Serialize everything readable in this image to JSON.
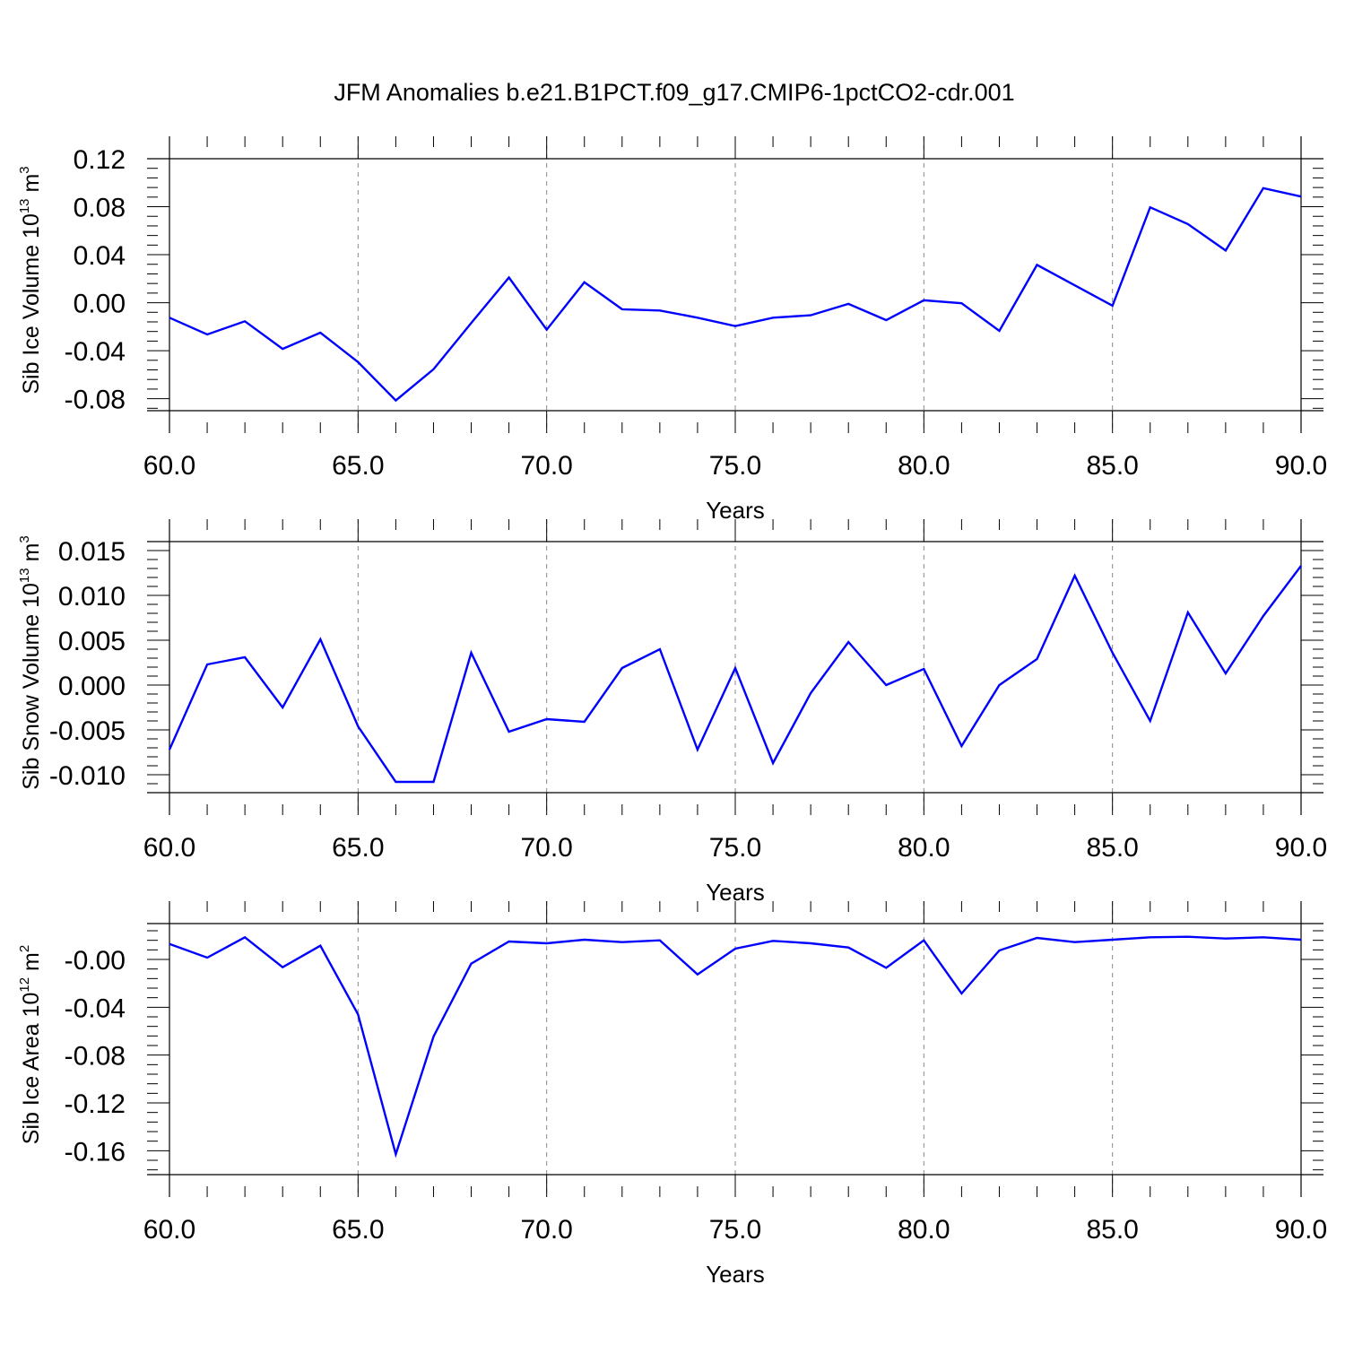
{
  "title": "JFM Anomalies b.e21.B1PCT.f09_g17.CMIP6-1pctCO2-cdr.001",
  "chart_data": [
    {
      "type": "line",
      "xlabel": "Years",
      "ylabel": {
        "text": "Sib Ice Volume 10",
        "exp": "13",
        "unit": " m",
        "unit_exp": "3"
      },
      "xlim": [
        60,
        90
      ],
      "ylim": [
        -0.09,
        0.12
      ],
      "yticks": [
        -0.08,
        -0.04,
        0.0,
        0.04,
        0.08,
        0.12
      ],
      "yticklabels": [
        "-0.08",
        "-0.04",
        "0.00",
        "0.04",
        "0.08",
        "0.12"
      ],
      "xticks": [
        60,
        65,
        70,
        75,
        80,
        85,
        90
      ],
      "xticklabels": [
        "60.0",
        "65.0",
        "70.0",
        "75.0",
        "80.0",
        "85.0",
        "90.0"
      ],
      "vgrid": [
        65,
        70,
        75,
        80,
        85
      ],
      "color": "#0000ff",
      "x": [
        60,
        61,
        62,
        63,
        64,
        65,
        66,
        67,
        68,
        69,
        70,
        71,
        72,
        73,
        74,
        75,
        76,
        77,
        78,
        79,
        80,
        81,
        82,
        83,
        84,
        85,
        86,
        87,
        88,
        89,
        90
      ],
      "y": [
        -0.0125,
        -0.0265,
        -0.0155,
        -0.0385,
        -0.025,
        -0.0495,
        -0.0815,
        -0.0555,
        -0.017,
        0.021,
        -0.0225,
        0.017,
        -0.0055,
        -0.0065,
        -0.0125,
        -0.0195,
        -0.0125,
        -0.0105,
        -0.001,
        -0.0145,
        0.002,
        -0.0005,
        -0.0235,
        0.0315,
        0.0145,
        -0.0025,
        0.0795,
        0.0655,
        0.0435,
        0.0955,
        0.0885
      ]
    },
    {
      "type": "line",
      "xlabel": "Years",
      "ylabel": {
        "text": "Sib Snow Volume 10",
        "exp": "13",
        "unit": " m",
        "unit_exp": "3"
      },
      "xlim": [
        60,
        90
      ],
      "ylim": [
        -0.012,
        0.016
      ],
      "yticks": [
        -0.01,
        -0.005,
        0.0,
        0.005,
        0.01,
        0.015
      ],
      "yticklabels": [
        "-0.010",
        "-0.005",
        "0.000",
        "0.005",
        "0.010",
        "0.015"
      ],
      "xticks": [
        60,
        65,
        70,
        75,
        80,
        85,
        90
      ],
      "xticklabels": [
        "60.0",
        "65.0",
        "70.0",
        "75.0",
        "80.0",
        "85.0",
        "90.0"
      ],
      "vgrid": [
        65,
        70,
        75,
        80,
        85
      ],
      "color": "#0000ff",
      "x": [
        60,
        61,
        62,
        63,
        64,
        65,
        66,
        67,
        68,
        69,
        70,
        71,
        72,
        73,
        74,
        75,
        76,
        77,
        78,
        79,
        80,
        81,
        82,
        83,
        84,
        85,
        86,
        87,
        88,
        89,
        90
      ],
      "y": [
        -0.0072,
        0.0023,
        0.0031,
        -0.0025,
        0.0051,
        -0.0046,
        -0.0108,
        -0.0108,
        0.0036,
        -0.0052,
        -0.0038,
        -0.0041,
        0.0019,
        0.004,
        -0.0072,
        0.0019,
        -0.0087,
        -0.0009,
        0.0048,
        0.0,
        0.0018,
        -0.0068,
        0.0,
        0.0029,
        0.0122,
        0.0036,
        -0.004,
        0.0081,
        0.0013,
        0.0077,
        0.0133
      ]
    },
    {
      "type": "line",
      "xlabel": "Years",
      "ylabel": {
        "text": "Sib Ice Area 10",
        "exp": "12",
        "unit": " m",
        "unit_exp": "2"
      },
      "xlim": [
        60,
        90
      ],
      "ylim": [
        -0.18,
        0.03
      ],
      "yticks": [
        -0.16,
        -0.12,
        -0.08,
        -0.04,
        0.0
      ],
      "yticklabels": [
        "-0.16",
        "-0.12",
        "-0.08",
        "-0.04",
        "-0.00"
      ],
      "xticks": [
        60,
        65,
        70,
        75,
        80,
        85,
        90
      ],
      "xticklabels": [
        "60.0",
        "65.0",
        "70.0",
        "75.0",
        "80.0",
        "85.0",
        "90.0"
      ],
      "vgrid": [
        65,
        70,
        75,
        80,
        85
      ],
      "color": "#0000ff",
      "x": [
        60,
        61,
        62,
        63,
        64,
        65,
        66,
        67,
        68,
        69,
        70,
        71,
        72,
        73,
        74,
        75,
        76,
        77,
        78,
        79,
        80,
        81,
        82,
        83,
        84,
        85,
        86,
        87,
        88,
        89,
        90
      ],
      "y": [
        0.013,
        0.0015,
        0.0185,
        -0.0065,
        0.0115,
        -0.046,
        -0.163,
        -0.0645,
        -0.0035,
        0.015,
        0.0135,
        0.0165,
        0.0145,
        0.016,
        -0.0125,
        0.009,
        0.0155,
        0.0135,
        0.01,
        -0.007,
        0.016,
        -0.0285,
        0.0075,
        0.018,
        0.0145,
        0.0165,
        0.0185,
        0.019,
        0.0175,
        0.0185,
        0.0165
      ]
    }
  ]
}
